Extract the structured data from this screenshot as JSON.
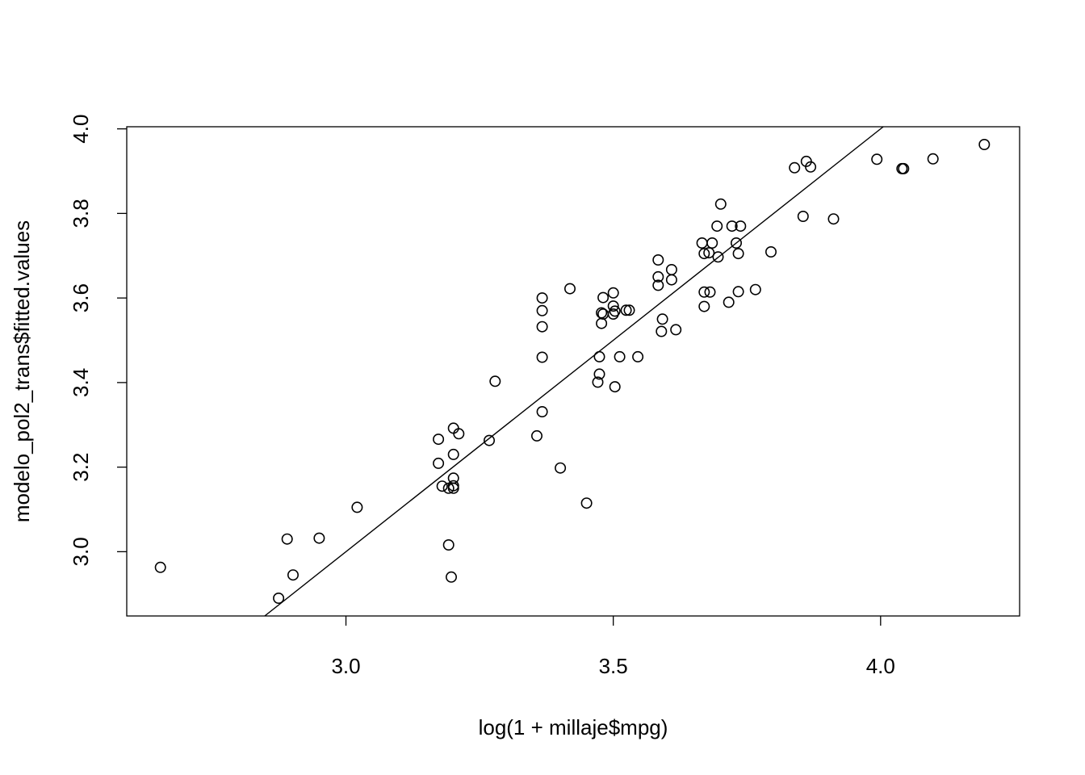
{
  "chart_data": {
    "type": "scatter",
    "title": "",
    "xlabel": "log(1 + millaje$mpg)",
    "ylabel": "modelo_pol2_trans$fitted.values",
    "xlim": [
      2.59,
      4.26
    ],
    "ylim": [
      2.848,
      4.005
    ],
    "x_ticks": [
      3.0,
      3.5,
      4.0
    ],
    "x_tick_labels": [
      "3.0",
      "3.5",
      "4.0"
    ],
    "y_ticks": [
      3.0,
      3.2,
      3.4,
      3.6,
      3.8,
      4.0
    ],
    "y_tick_labels": [
      "3.0",
      "3.2",
      "3.4",
      "3.6",
      "3.8",
      "4.0"
    ],
    "grid": false,
    "box": true,
    "reference_line": {
      "intercept": 0,
      "slope": 1
    },
    "points": [
      [
        2.653,
        2.963
      ],
      [
        2.874,
        2.89
      ],
      [
        2.89,
        3.03
      ],
      [
        2.901,
        2.945
      ],
      [
        2.95,
        3.032
      ],
      [
        3.021,
        3.105
      ],
      [
        3.173,
        3.266
      ],
      [
        3.173,
        3.209
      ],
      [
        3.18,
        3.155
      ],
      [
        3.192,
        3.15
      ],
      [
        3.192,
        3.016
      ],
      [
        3.197,
        2.94
      ],
      [
        3.201,
        3.292
      ],
      [
        3.201,
        3.23
      ],
      [
        3.201,
        3.174
      ],
      [
        3.201,
        3.156
      ],
      [
        3.201,
        3.15
      ],
      [
        3.211,
        3.279
      ],
      [
        3.268,
        3.263
      ],
      [
        3.279,
        3.403
      ],
      [
        3.357,
        3.274
      ],
      [
        3.367,
        3.6
      ],
      [
        3.367,
        3.57
      ],
      [
        3.367,
        3.532
      ],
      [
        3.367,
        3.46
      ],
      [
        3.367,
        3.331
      ],
      [
        3.401,
        3.198
      ],
      [
        3.419,
        3.622
      ],
      [
        3.45,
        3.115
      ],
      [
        3.471,
        3.401
      ],
      [
        3.474,
        3.42
      ],
      [
        3.474,
        3.461
      ],
      [
        3.478,
        3.54
      ],
      [
        3.478,
        3.565
      ],
      [
        3.481,
        3.601
      ],
      [
        3.481,
        3.562
      ],
      [
        3.5,
        3.612
      ],
      [
        3.5,
        3.581
      ],
      [
        3.5,
        3.562
      ],
      [
        3.503,
        3.569
      ],
      [
        3.503,
        3.39
      ],
      [
        3.512,
        3.461
      ],
      [
        3.524,
        3.571
      ],
      [
        3.53,
        3.571
      ],
      [
        3.546,
        3.461
      ],
      [
        3.584,
        3.65
      ],
      [
        3.584,
        3.63
      ],
      [
        3.584,
        3.69
      ],
      [
        3.59,
        3.521
      ],
      [
        3.592,
        3.55
      ],
      [
        3.609,
        3.643
      ],
      [
        3.609,
        3.667
      ],
      [
        3.617,
        3.525
      ],
      [
        3.666,
        3.73
      ],
      [
        3.67,
        3.705
      ],
      [
        3.67,
        3.614
      ],
      [
        3.67,
        3.58
      ],
      [
        3.679,
        3.707
      ],
      [
        3.681,
        3.614
      ],
      [
        3.685,
        3.73
      ],
      [
        3.694,
        3.77
      ],
      [
        3.696,
        3.697
      ],
      [
        3.701,
        3.822
      ],
      [
        3.716,
        3.59
      ],
      [
        3.722,
        3.77
      ],
      [
        3.73,
        3.73
      ],
      [
        3.734,
        3.705
      ],
      [
        3.734,
        3.615
      ],
      [
        3.738,
        3.77
      ],
      [
        3.766,
        3.62
      ],
      [
        3.795,
        3.709
      ],
      [
        3.839,
        3.908
      ],
      [
        3.855,
        3.793
      ],
      [
        3.861,
        3.923
      ],
      [
        3.869,
        3.91
      ],
      [
        3.912,
        3.787
      ],
      [
        3.993,
        3.928
      ],
      [
        4.04,
        3.906
      ],
      [
        4.043,
        3.906
      ],
      [
        4.098,
        3.929
      ],
      [
        4.194,
        3.963
      ]
    ]
  }
}
